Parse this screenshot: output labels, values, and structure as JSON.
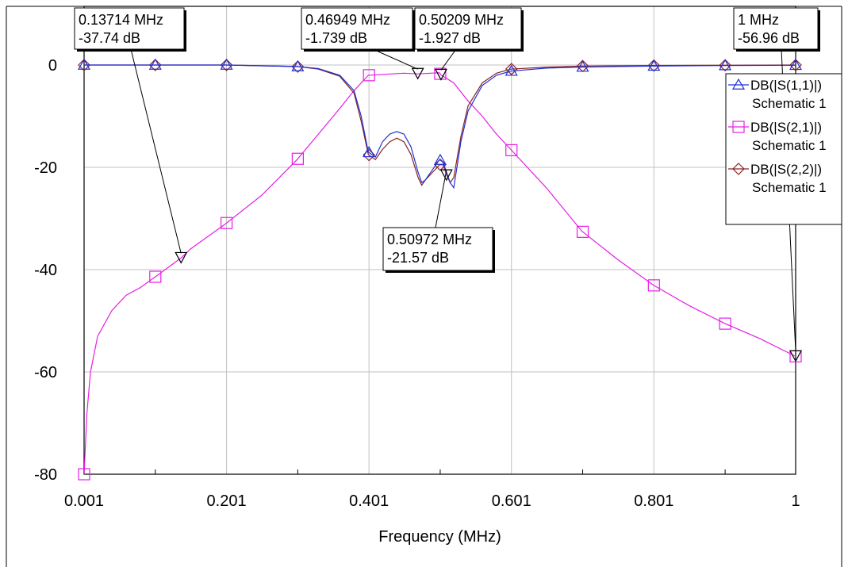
{
  "chart_data": {
    "type": "line",
    "xlabel": "Frequency (MHz)",
    "ylabel": "",
    "xlim": [
      0.001,
      1
    ],
    "ylim": [
      -80,
      4
    ],
    "x_ticks": [
      0.001,
      0.201,
      0.401,
      0.601,
      0.801,
      1
    ],
    "x_tick_labels": [
      "0.001",
      "0.201",
      "0.401",
      "0.601",
      "0.801",
      "1"
    ],
    "x_minor_ticks": [
      0.101,
      0.301,
      0.501,
      0.701,
      0.901
    ],
    "y_ticks": [
      0,
      -20,
      -40,
      -60,
      -80
    ],
    "y_tick_labels": [
      "0",
      "-20",
      "-40",
      "-60",
      "-80"
    ],
    "grid": true,
    "legend_position": "right",
    "series": [
      {
        "name": "DB(|S(1,1)|)",
        "source": "Schematic 1",
        "color": "#1f2fd6",
        "marker": "triangle",
        "points": [
          [
            0.001,
            0
          ],
          [
            0.1,
            0
          ],
          [
            0.2,
            0
          ],
          [
            0.3,
            -0.3
          ],
          [
            0.33,
            -0.7
          ],
          [
            0.36,
            -2
          ],
          [
            0.38,
            -5
          ],
          [
            0.39,
            -10
          ],
          [
            0.4,
            -17
          ],
          [
            0.41,
            -18
          ],
          [
            0.42,
            -15
          ],
          [
            0.43,
            -13.5
          ],
          [
            0.44,
            -13
          ],
          [
            0.45,
            -13.5
          ],
          [
            0.46,
            -16
          ],
          [
            0.47,
            -21
          ],
          [
            0.475,
            -23
          ],
          [
            0.48,
            -22.5
          ],
          [
            0.49,
            -20.5
          ],
          [
            0.5,
            -18.5
          ],
          [
            0.505,
            -19
          ],
          [
            0.51,
            -21
          ],
          [
            0.515,
            -23
          ],
          [
            0.52,
            -24
          ],
          [
            0.53,
            -15
          ],
          [
            0.54,
            -9
          ],
          [
            0.56,
            -4
          ],
          [
            0.58,
            -2
          ],
          [
            0.6,
            -1.2
          ],
          [
            0.65,
            -0.6
          ],
          [
            0.7,
            -0.4
          ],
          [
            0.8,
            -0.2
          ],
          [
            0.9,
            -0.1
          ],
          [
            1,
            -0.05
          ]
        ],
        "marker_x": [
          0.001,
          0.101,
          0.201,
          0.301,
          0.401,
          0.501,
          0.601,
          0.701,
          0.801,
          0.901,
          1
        ]
      },
      {
        "name": "DB(|S(2,1)|)",
        "source": "Schematic 1",
        "color": "#e61ee6",
        "marker": "square",
        "points": [
          [
            0.001,
            -80
          ],
          [
            0.005,
            -68
          ],
          [
            0.01,
            -60
          ],
          [
            0.02,
            -53
          ],
          [
            0.04,
            -48
          ],
          [
            0.06,
            -45
          ],
          [
            0.08,
            -43.5
          ],
          [
            0.1,
            -41.5
          ],
          [
            0.137,
            -37.74
          ],
          [
            0.15,
            -36
          ],
          [
            0.2,
            -31
          ],
          [
            0.25,
            -25.5
          ],
          [
            0.3,
            -18.5
          ],
          [
            0.33,
            -13.5
          ],
          [
            0.36,
            -8.5
          ],
          [
            0.38,
            -5
          ],
          [
            0.4,
            -2
          ],
          [
            0.45,
            -1.6
          ],
          [
            0.47,
            -1.739
          ],
          [
            0.5,
            -1.5
          ],
          [
            0.502,
            -1.927
          ],
          [
            0.52,
            -3.5
          ],
          [
            0.54,
            -7
          ],
          [
            0.56,
            -10
          ],
          [
            0.58,
            -13.5
          ],
          [
            0.6,
            -16.5
          ],
          [
            0.65,
            -24
          ],
          [
            0.7,
            -32.5
          ],
          [
            0.75,
            -38
          ],
          [
            0.8,
            -43
          ],
          [
            0.85,
            -47
          ],
          [
            0.9,
            -50.5
          ],
          [
            0.95,
            -53.5
          ],
          [
            1,
            -56.96
          ]
        ],
        "marker_x": [
          0.001,
          0.101,
          0.201,
          0.301,
          0.401,
          0.501,
          0.601,
          0.701,
          0.801,
          0.901,
          1
        ]
      },
      {
        "name": "DB(|S(2,2)|)",
        "source": "Schematic 1",
        "color": "#8b2323",
        "marker": "diamond",
        "points": [
          [
            0.001,
            0
          ],
          [
            0.1,
            0
          ],
          [
            0.2,
            0
          ],
          [
            0.3,
            -0.3
          ],
          [
            0.33,
            -0.8
          ],
          [
            0.36,
            -2.2
          ],
          [
            0.38,
            -5.5
          ],
          [
            0.39,
            -11
          ],
          [
            0.4,
            -17.5
          ],
          [
            0.41,
            -18.5
          ],
          [
            0.42,
            -16.5
          ],
          [
            0.43,
            -15
          ],
          [
            0.44,
            -14.3
          ],
          [
            0.45,
            -15
          ],
          [
            0.46,
            -17.5
          ],
          [
            0.47,
            -22
          ],
          [
            0.475,
            -23.5
          ],
          [
            0.48,
            -22.5
          ],
          [
            0.49,
            -21
          ],
          [
            0.5,
            -19.5
          ],
          [
            0.505,
            -19.5
          ],
          [
            0.51,
            -21.5
          ],
          [
            0.515,
            -23
          ],
          [
            0.52,
            -22
          ],
          [
            0.53,
            -14
          ],
          [
            0.54,
            -8
          ],
          [
            0.56,
            -3.5
          ],
          [
            0.58,
            -1.6
          ],
          [
            0.6,
            -0.8
          ],
          [
            0.65,
            -0.4
          ],
          [
            0.7,
            -0.2
          ],
          [
            0.8,
            -0.1
          ],
          [
            1,
            0
          ]
        ],
        "marker_x": [
          0.001,
          0.101,
          0.201,
          0.301,
          0.401,
          0.501,
          0.601,
          0.701,
          0.801,
          0.901,
          1
        ]
      }
    ],
    "markers": [
      {
        "x": 0.13714,
        "y": -37.74,
        "line1": "0.13714 MHz",
        "line2": "-37.74 dB"
      },
      {
        "x": 0.46949,
        "y": -1.739,
        "line1": "0.46949 MHz",
        "line2": "-1.739 dB"
      },
      {
        "x": 0.50209,
        "y": -1.927,
        "line1": "0.50209 MHz",
        "line2": "-1.927 dB"
      },
      {
        "x": 0.50972,
        "y": -21.57,
        "line1": "0.50972 MHz",
        "line2": "-21.57 dB"
      },
      {
        "x": 1,
        "y": -56.96,
        "line1": "1 MHz",
        "line2": "-56.96 dB"
      }
    ]
  }
}
